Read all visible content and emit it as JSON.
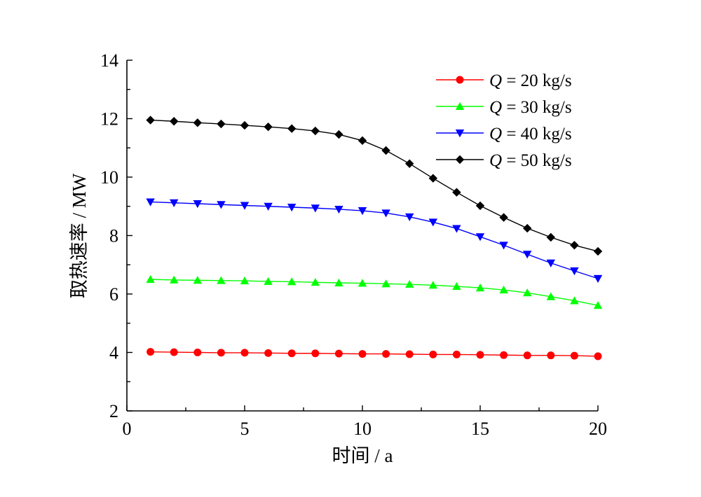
{
  "chart_data": {
    "type": "line",
    "xlabel": "时间 / a",
    "ylabel": "取热速率 / MW",
    "xlim": [
      0,
      20
    ],
    "ylim": [
      2,
      14
    ],
    "xticks": [
      "0",
      "5",
      "10",
      "15",
      "20"
    ],
    "yticks": [
      "2",
      "4",
      "6",
      "8",
      "10",
      "12",
      "14"
    ],
    "grid": false,
    "legend_position": "top-right",
    "x": [
      1,
      2,
      3,
      4,
      5,
      6,
      7,
      8,
      9,
      10,
      11,
      12,
      13,
      14,
      15,
      16,
      17,
      18,
      19,
      20
    ],
    "series": [
      {
        "name": "Q = 20 kg/s",
        "legend_q": "Q",
        "legend_rest": " = 20 kg/s",
        "color": "#ff0000",
        "marker": "circle",
        "values": [
          4.02,
          4.01,
          4.0,
          3.99,
          3.99,
          3.98,
          3.97,
          3.97,
          3.96,
          3.95,
          3.95,
          3.94,
          3.93,
          3.93,
          3.92,
          3.91,
          3.9,
          3.9,
          3.89,
          3.87
        ]
      },
      {
        "name": "Q = 30 kg/s",
        "legend_q": "Q",
        "legend_rest": " = 30 kg/s",
        "color": "#00ff00",
        "marker": "triangle-up",
        "values": [
          6.5,
          6.48,
          6.47,
          6.46,
          6.45,
          6.43,
          6.42,
          6.4,
          6.38,
          6.37,
          6.35,
          6.33,
          6.3,
          6.26,
          6.21,
          6.14,
          6.04,
          5.91,
          5.77,
          5.61
        ]
      },
      {
        "name": "Q = 40 kg/s",
        "legend_q": "Q",
        "legend_rest": " = 40 kg/s",
        "color": "#0000ff",
        "marker": "triangle-down",
        "values": [
          9.15,
          9.12,
          9.09,
          9.06,
          9.03,
          9.0,
          8.97,
          8.94,
          8.9,
          8.85,
          8.77,
          8.64,
          8.46,
          8.24,
          7.96,
          7.67,
          7.36,
          7.06,
          6.79,
          6.53
        ]
      },
      {
        "name": "Q = 50 kg/s",
        "legend_q": "Q",
        "legend_rest": " = 50 kg/s",
        "color": "#000000",
        "marker": "diamond",
        "values": [
          11.95,
          11.91,
          11.86,
          11.82,
          11.77,
          11.72,
          11.66,
          11.58,
          11.46,
          11.25,
          10.91,
          10.46,
          9.96,
          9.48,
          9.02,
          8.62,
          8.25,
          7.94,
          7.67,
          7.46
        ]
      }
    ]
  }
}
